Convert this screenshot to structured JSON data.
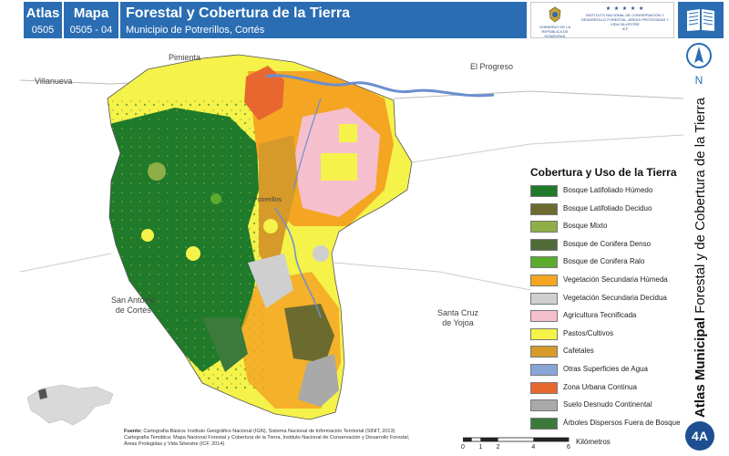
{
  "header": {
    "atlas_label": "Atlas",
    "atlas_code": "0505",
    "map_label": "Mapa",
    "map_code": "0505 - 04",
    "title": "Forestal y Cobertura de la Tierra",
    "subtitle": "Municipio de Potrerillos, Cortés",
    "logo_gov_text": "GOBIERNO DE LA REPÚBLICA DE HONDURAS",
    "logo_icf_text": "INSTITUTO NACIONAL DE CONSERVACIÓN Y DESARROLLO FORESTAL, ÁREAS PROTEGIDAS Y VIDA SILVESTRE",
    "logo_icf_short": "ICF"
  },
  "compass": {
    "letter": "N",
    "icon": "north-arrow-icon"
  },
  "side_title": {
    "bold": "Atlas Municipal",
    "rest": " Forestal y de Cobertura de la Tierra"
  },
  "badge": "4A",
  "places": {
    "pimienta": "Pimienta",
    "el_progreso": "El Progreso",
    "villanueva": "Villanueva",
    "potrerillos": "Potrerillos",
    "san_antonio": "San Antonio",
    "de_cortes": "de Cortés",
    "santa_cruz": "Santa Cruz",
    "de_yojoa": "de Yojoa"
  },
  "legend": {
    "title": "Cobertura y Uso de la Tierra",
    "items": [
      {
        "label": "Bosque Latifoliado Húmedo",
        "color": "#1f7a2a"
      },
      {
        "label": "Bosque Latifoliado Deciduo",
        "color": "#6b6b2f"
      },
      {
        "label": "Bosque Mixto",
        "color": "#8fae48"
      },
      {
        "label": "Bosque de Conifera Denso",
        "color": "#4f6b3a"
      },
      {
        "label": "Bosque de Conifera Ralo",
        "color": "#5aab2e"
      },
      {
        "label": "Vegetación Secundaria Húmeda",
        "color": "#f4a623"
      },
      {
        "label": "Vegetación Secundaria Decidua",
        "color": "#cfcfcf"
      },
      {
        "label": "Agricultura Tecnificada",
        "color": "#f6bfcd"
      },
      {
        "label": "Pastos/Cultivos",
        "color": "#f5f24a"
      },
      {
        "label": "Cafetales",
        "color": "#d69a2b"
      },
      {
        "label": "Otras Superficies de Agua",
        "color": "#86a6d8"
      },
      {
        "label": "Zona Urbana Continua",
        "color": "#e8672f"
      },
      {
        "label": "Suelo Desnudo Continental",
        "color": "#a9a9a9"
      },
      {
        "label": "Árboles Dispersos Fuera de Bosque",
        "color": "#3b7a3b"
      }
    ]
  },
  "source": {
    "label": "Fuente:",
    "line1": "Cartografía Básica: Instituto Geográfico Nacional (IGN), Sistema Nacional de Información Territorial (SINIT, 2013)",
    "line2": "Cartografía Temática: Mapa Nacional Forestal y Cobertura de la Tierra, Instituto Nacional de Conservación y Desarrollo Forestal,",
    "line3": "Áreas Protegidas y Vida Silvestre (ICF, 2014)"
  },
  "scale": {
    "ticks": [
      "0",
      "1",
      "2",
      "4",
      "6"
    ],
    "unit": "Kilómetros"
  },
  "colors": {
    "header_blue": "#2a6db3",
    "badge_blue": "#1d4f91",
    "river": "#6a8fd0"
  }
}
